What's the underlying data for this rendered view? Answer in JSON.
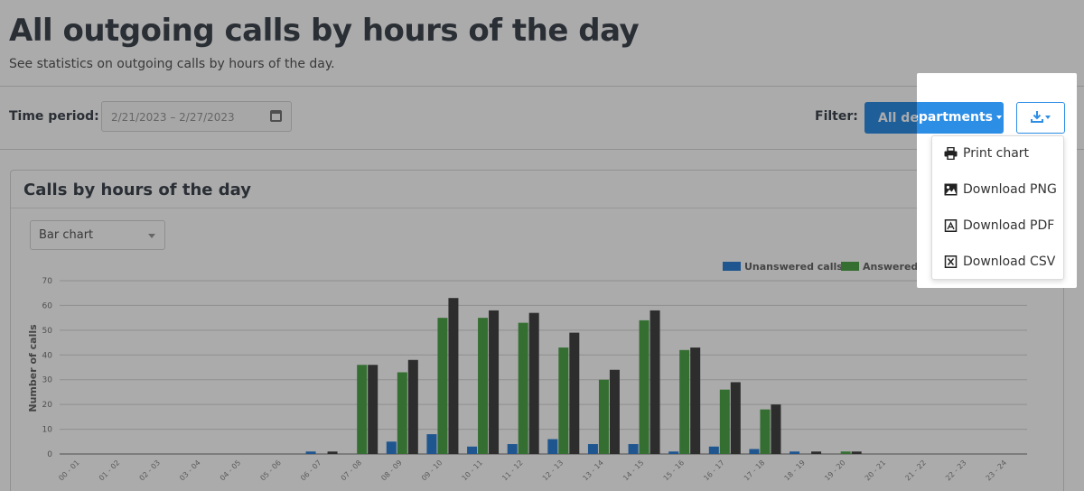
{
  "page": {
    "title": "All outgoing calls by hours of the day",
    "subtitle": "See statistics on outgoing calls by hours of the day."
  },
  "toolbar": {
    "time_period_label": "Time period:",
    "time_period_value": "2/21/2023 – 2/27/2023",
    "filter_label": "Filter:",
    "department_button": "All departments",
    "departments_fragment": "partments"
  },
  "panel": {
    "title": "Calls by hours of the day",
    "chart_type_selected": "Bar chart"
  },
  "download_menu": {
    "items": [
      {
        "label": "Print chart",
        "icon": "printer-icon"
      },
      {
        "label": "Download PNG",
        "icon": "image-icon"
      },
      {
        "label": "Download PDF",
        "icon": "pdf-icon"
      },
      {
        "label": "Download CSV",
        "icon": "csv-icon"
      }
    ]
  },
  "colors": {
    "accent": "#2d8ee6",
    "unanswered": "#2f80d6",
    "answered": "#4ea64a",
    "total": "#444444"
  },
  "chart_data": {
    "type": "bar",
    "ylabel": "Number of calls",
    "ylim": [
      0,
      70
    ],
    "yticks": [
      0,
      10,
      20,
      30,
      40,
      50,
      60,
      70
    ],
    "grid": true,
    "legend_position": "top-right",
    "categories": [
      "00 - 01",
      "01 - 02",
      "02 - 03",
      "03 - 04",
      "04 - 05",
      "05 - 06",
      "06 - 07",
      "07 - 08",
      "08 - 09",
      "09 - 10",
      "10 - 11",
      "11 - 12",
      "12 - 13",
      "13 - 14",
      "14 - 15",
      "15 - 16",
      "16 - 17",
      "17 - 18",
      "18 - 19",
      "19 - 20",
      "20 - 21",
      "21 - 22",
      "22 - 23",
      "23 - 24"
    ],
    "series": [
      {
        "name": "Unanswered calls",
        "values": [
          0,
          0,
          0,
          0,
          0,
          0,
          1,
          0,
          5,
          8,
          3,
          4,
          6,
          4,
          4,
          1,
          3,
          2,
          1,
          0,
          0,
          0,
          0,
          0
        ]
      },
      {
        "name": "Answered call",
        "values": [
          0,
          0,
          0,
          0,
          0,
          0,
          0,
          36,
          33,
          55,
          55,
          53,
          43,
          30,
          54,
          42,
          26,
          18,
          0,
          1,
          0,
          0,
          0,
          0
        ]
      },
      {
        "name": "",
        "values": [
          0,
          0,
          0,
          0,
          0,
          0,
          1,
          36,
          38,
          63,
          58,
          57,
          49,
          34,
          58,
          43,
          29,
          20,
          1,
          1,
          0,
          0,
          0,
          0
        ]
      }
    ]
  }
}
